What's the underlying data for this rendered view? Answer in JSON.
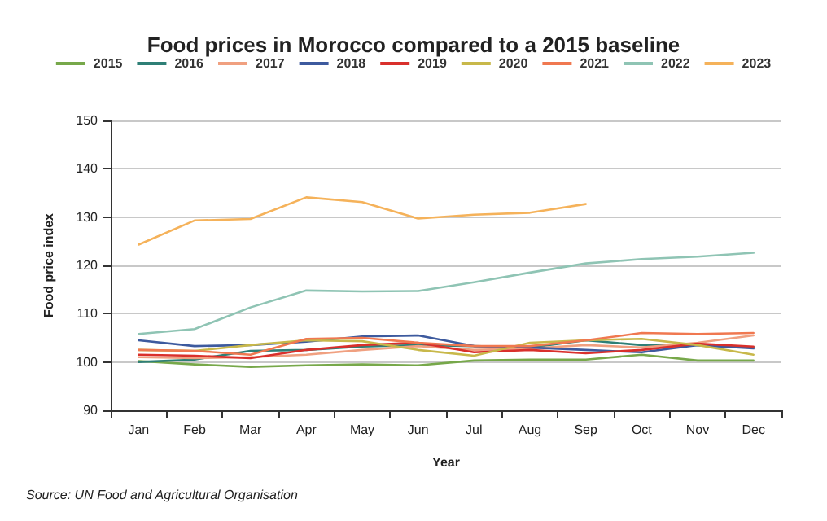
{
  "chart_data": {
    "type": "line",
    "title": "Food prices in Morocco compared to a 2015 baseline",
    "xlabel": "Year",
    "ylabel": "Food price index",
    "categories": [
      "Jan",
      "Feb",
      "Mar",
      "Apr",
      "May",
      "Jun",
      "Jul",
      "Aug",
      "Sep",
      "Oct",
      "Nov",
      "Dec"
    ],
    "series": [
      {
        "name": "2015",
        "color": "#77a84a",
        "values": [
          100.2,
          99.5,
          99.0,
          99.3,
          99.5,
          99.3,
          100.3,
          100.5,
          100.5,
          101.5,
          100.3,
          100.3
        ]
      },
      {
        "name": "2016",
        "color": "#2e7f76",
        "values": [
          100.0,
          100.5,
          102.3,
          102.5,
          103.2,
          103.5,
          103.3,
          103.0,
          104.5,
          103.5,
          103.5,
          103.0
        ]
      },
      {
        "name": "2017",
        "color": "#f0a080",
        "values": [
          101.0,
          100.8,
          101.0,
          101.5,
          102.5,
          103.3,
          102.5,
          102.8,
          103.5,
          103.0,
          104.0,
          105.5
        ]
      },
      {
        "name": "2018",
        "color": "#3d5a9e",
        "values": [
          104.5,
          103.3,
          103.5,
          104.2,
          105.3,
          105.5,
          103.3,
          103.0,
          102.5,
          102.0,
          103.5,
          102.8
        ]
      },
      {
        "name": "2019",
        "color": "#d9302c",
        "values": [
          101.5,
          101.3,
          100.8,
          102.5,
          103.5,
          104.0,
          102.0,
          102.5,
          101.8,
          102.5,
          103.8,
          103.2
        ]
      },
      {
        "name": "2020",
        "color": "#c8b84a",
        "values": [
          102.5,
          102.3,
          103.5,
          104.5,
          104.3,
          102.5,
          101.3,
          104.0,
          104.5,
          104.8,
          103.5,
          101.5
        ]
      },
      {
        "name": "2021",
        "color": "#f07850",
        "values": [
          102.5,
          102.3,
          101.5,
          104.8,
          105.0,
          104.0,
          103.3,
          103.3,
          104.5,
          106.0,
          105.8,
          106.0
        ]
      },
      {
        "name": "2022",
        "color": "#8fc4b4",
        "values": [
          105.8,
          106.8,
          111.3,
          114.8,
          114.6,
          114.7,
          116.5,
          118.5,
          120.4,
          121.3,
          121.8,
          122.6
        ]
      },
      {
        "name": "2023",
        "color": "#f5b25a",
        "values": [
          124.3,
          129.3,
          129.6,
          134.1,
          133.1,
          129.7,
          130.5,
          130.9,
          132.7,
          null,
          null,
          null
        ]
      }
    ],
    "ylim": [
      90,
      150
    ],
    "yticks": [
      90,
      100,
      110,
      120,
      130,
      140,
      150
    ],
    "grid": "y",
    "legend": "top",
    "marker": "none",
    "line_style": "solid",
    "annotations": [
      "Source: UN Food and Agricultural Organisation"
    ]
  }
}
